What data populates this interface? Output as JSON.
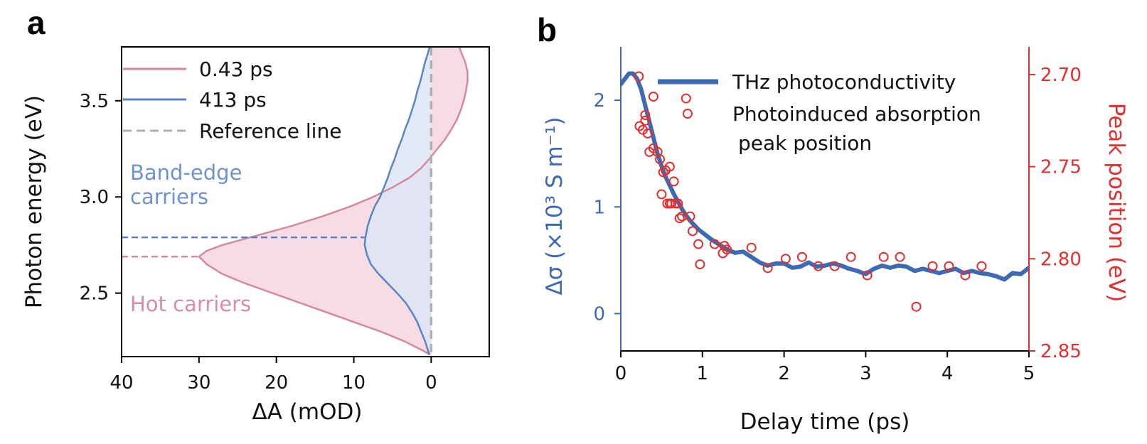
{
  "panels": {
    "a": {
      "letter": "a"
    },
    "b": {
      "letter": "b"
    }
  },
  "chart_data": [
    {
      "type": "area",
      "panel": "a",
      "xlabel": "ΔA (mOD)",
      "ylabel": "Photon energy (eV)",
      "xlim": [
        40,
        -7.5
      ],
      "x_reversed": true,
      "ylim": [
        2.17,
        3.78
      ],
      "xticks": [
        "40",
        "30",
        "20",
        "10",
        "0"
      ],
      "yticks": [
        "2.5",
        "3.0",
        "3.5"
      ],
      "legend": {
        "position": "top-right",
        "entries": [
          {
            "label": "0.43 ps",
            "color": "#d4899d",
            "style": "solid"
          },
          {
            "label": "413 ps",
            "color": "#5b84c8",
            "style": "solid"
          },
          {
            "label": "Reference line",
            "color": "#b0b0b0",
            "style": "dashed"
          }
        ]
      },
      "annotations": [
        {
          "text": "Band-edge",
          "color": "#6f93cf"
        },
        {
          "text": "carriers",
          "color": "#6f93cf"
        },
        {
          "text": "Hot carriers",
          "color": "#d68ea2"
        }
      ],
      "series": [
        {
          "name": "0.43 ps",
          "color": "#d4899d",
          "fill": "#f7dde3",
          "y": [
            2.18,
            2.2,
            2.25,
            2.3,
            2.35,
            2.4,
            2.45,
            2.5,
            2.55,
            2.6,
            2.65,
            2.69,
            2.72,
            2.75,
            2.8,
            2.85,
            2.9,
            2.95,
            3.0,
            3.05,
            3.1,
            3.15,
            3.2,
            3.25,
            3.3,
            3.35,
            3.4,
            3.45,
            3.5,
            3.55,
            3.6,
            3.65,
            3.7,
            3.75,
            3.78
          ],
          "x": [
            0.2,
            1,
            3.5,
            6.5,
            10,
            13.5,
            17,
            20.5,
            24,
            27,
            29,
            30,
            29,
            27,
            22.5,
            18,
            14,
            10.5,
            7.5,
            5,
            2.8,
            1.3,
            0.2,
            -0.8,
            -1.8,
            -2.6,
            -3.3,
            -3.8,
            -4.2,
            -4.5,
            -4.7,
            -4.7,
            -4.4,
            -3.9,
            -3.6
          ]
        },
        {
          "name": "413 ps",
          "color": "#5b84c8",
          "fill": "#dde6f6",
          "y": [
            2.18,
            2.2,
            2.25,
            2.3,
            2.35,
            2.4,
            2.45,
            2.5,
            2.55,
            2.6,
            2.65,
            2.7,
            2.75,
            2.79,
            2.85,
            2.9,
            2.95,
            3.0,
            3.05,
            3.1,
            3.15,
            3.2,
            3.25,
            3.3,
            3.35,
            3.4,
            3.45,
            3.5,
            3.55,
            3.6,
            3.65,
            3.7,
            3.75,
            3.78
          ],
          "x": [
            0.2,
            0.4,
            0.8,
            1.3,
            1.8,
            2.5,
            3.3,
            4.4,
            5.6,
            6.8,
            7.8,
            8.3,
            8.6,
            8.5,
            8.2,
            7.8,
            7.3,
            6.6,
            6.1,
            5.6,
            5.2,
            4.7,
            4.3,
            3.8,
            3.4,
            2.9,
            2.5,
            2.1,
            1.8,
            1.4,
            1.1,
            0.8,
            0.4,
            0.2
          ]
        }
      ],
      "reference_line_x": 0,
      "guides": [
        {
          "x_from": 40,
          "x_to": 8.6,
          "y": 2.79,
          "color": "#5b84c8",
          "style": "dashed"
        },
        {
          "x_from": 40,
          "x_to": 30,
          "y": 2.69,
          "color": "#d4899d",
          "style": "dashed"
        }
      ]
    },
    {
      "type": "line",
      "panel": "b",
      "xlabel": "Delay time (ps)",
      "ylabel_left": "Δσ (×10³ S m⁻¹)",
      "ylabel_right": "Peak position (eV)",
      "xlim": [
        0,
        5
      ],
      "ylim_left": [
        -0.35,
        2.5
      ],
      "ylim_right": [
        2.685,
        2.85
      ],
      "right_axis_inverted": true,
      "xticks": [
        "0",
        "1",
        "2",
        "3",
        "4",
        "5"
      ],
      "yticks_left": [
        "0",
        "1",
        "2"
      ],
      "yticks_right": [
        "2.70",
        "2.75",
        "2.80",
        "2.85"
      ],
      "left_color": "#3d6ab3",
      "right_color": "#e03030",
      "legend": {
        "position": "top-right",
        "entries": [
          {
            "label": "THz photoconductivity",
            "color": "#3d6ab3",
            "style": "thick-line"
          },
          {
            "label": "Photoinduced absorption",
            "label_line2": "peak position",
            "color": "#e03030",
            "style": "open-circle"
          }
        ]
      },
      "series": [
        {
          "name": "THz photoconductivity",
          "axis": "left",
          "color": "#3d6ab3",
          "x": [
            0,
            0.05,
            0.1,
            0.15,
            0.2,
            0.25,
            0.3,
            0.35,
            0.4,
            0.45,
            0.5,
            0.55,
            0.6,
            0.65,
            0.7,
            0.75,
            0.8,
            0.85,
            0.9,
            0.95,
            1.0,
            1.1,
            1.2,
            1.3,
            1.4,
            1.5,
            1.6,
            1.7,
            1.8,
            1.9,
            2.0,
            2.1,
            2.2,
            2.3,
            2.4,
            2.5,
            2.6,
            2.7,
            2.8,
            2.9,
            3.0,
            3.1,
            3.2,
            3.3,
            3.4,
            3.5,
            3.6,
            3.7,
            3.8,
            3.9,
            4.0,
            4.1,
            4.2,
            4.3,
            4.4,
            4.5,
            4.6,
            4.7,
            4.8,
            4.9,
            5.0
          ],
          "y": [
            2.15,
            2.2,
            2.25,
            2.25,
            2.2,
            2.1,
            1.95,
            1.8,
            1.65,
            1.5,
            1.38,
            1.28,
            1.2,
            1.12,
            1.05,
            0.98,
            0.92,
            0.87,
            0.83,
            0.79,
            0.76,
            0.7,
            0.65,
            0.6,
            0.57,
            0.58,
            0.53,
            0.48,
            0.45,
            0.47,
            0.47,
            0.43,
            0.44,
            0.48,
            0.44,
            0.45,
            0.47,
            0.45,
            0.42,
            0.4,
            0.37,
            0.42,
            0.45,
            0.43,
            0.45,
            0.44,
            0.4,
            0.42,
            0.4,
            0.38,
            0.4,
            0.42,
            0.38,
            0.4,
            0.38,
            0.37,
            0.35,
            0.32,
            0.38,
            0.37,
            0.43
          ]
        },
        {
          "name": "Photoinduced absorption peak position",
          "axis": "right",
          "color": "#e03030",
          "marker": "open-circle",
          "x": [
            0.22,
            0.23,
            0.27,
            0.3,
            0.3,
            0.33,
            0.35,
            0.4,
            0.4,
            0.45,
            0.48,
            0.5,
            0.52,
            0.55,
            0.57,
            0.6,
            0.6,
            0.62,
            0.65,
            0.67,
            0.7,
            0.72,
            0.75,
            0.8,
            0.85,
            0.88,
            0.95,
            0.97,
            1.15,
            1.25,
            1.27,
            1.3,
            1.6,
            1.8,
            2.02,
            2.22,
            2.42,
            2.62,
            2.82,
            3.02,
            3.22,
            3.42,
            3.62,
            3.82,
            4.02,
            4.22,
            4.42
          ],
          "y": [
            2.701,
            2.728,
            2.73,
            2.722,
            2.725,
            2.732,
            2.742,
            2.74,
            2.712,
            2.742,
            2.746,
            2.765,
            2.753,
            2.752,
            2.77,
            2.75,
            2.77,
            2.77,
            2.758,
            2.77,
            2.77,
            2.778,
            2.777,
            2.713,
            2.777,
            2.785,
            2.792,
            2.803,
            2.792,
            2.797,
            2.793,
            2.795,
            2.794,
            2.805,
            2.8,
            2.799,
            2.804,
            2.804,
            2.799,
            2.809,
            2.799,
            2.799,
            2.826,
            2.804,
            2.804,
            2.809,
            2.804
          ]
        }
      ]
    }
  ]
}
